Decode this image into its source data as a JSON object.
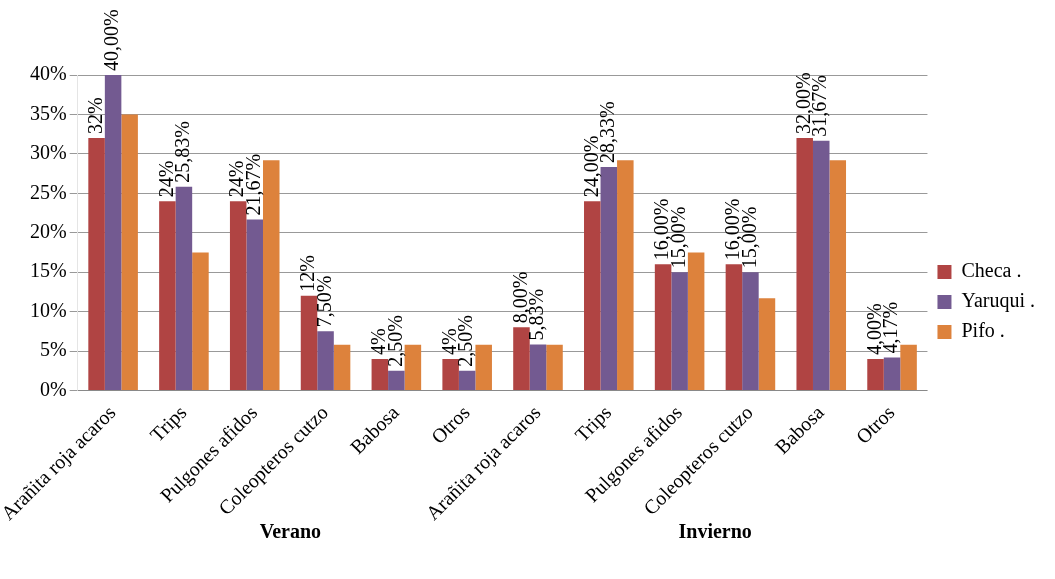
{
  "chart_data": {
    "type": "bar",
    "categories": [
      "Arañita roja acaros",
      "Trips",
      "Pulgones afidos",
      "Coleopteros cutzo",
      "Babosa",
      "Otros",
      "Arañita roja acaros",
      "Trips",
      "Pulgones afidos",
      "Coleopteros cutzo",
      "Babosa",
      "Otros"
    ],
    "series": [
      {
        "name": "Checa .",
        "color": "#b04443",
        "values": [
          32,
          24,
          24,
          12,
          4,
          4,
          8,
          24,
          16,
          16,
          32,
          4
        ],
        "value_labels": [
          "32%",
          "24%",
          "24%",
          "12%",
          "4%",
          "4%",
          "8,00%",
          "24,00%",
          "16,00%",
          "16,00%",
          "32,00%",
          "4,00%"
        ]
      },
      {
        "name": "Yaruqui .",
        "color": "#735a91",
        "values": [
          40,
          25.83,
          21.67,
          7.5,
          2.5,
          2.5,
          5.83,
          28.33,
          15,
          15,
          31.67,
          4.17
        ],
        "value_labels": [
          "40,00%",
          "25,83%",
          "21,67%",
          "7,50%",
          "2,50%",
          "2,50%",
          "5,83%",
          "28,33%",
          "15,00%",
          "15,00%",
          "31,67%",
          "4,17%"
        ]
      },
      {
        "name": "Pifo .",
        "color": "#dd823c",
        "values": [
          35,
          17.5,
          29.2,
          5.8,
          5.8,
          5.8,
          5.8,
          29.2,
          17.5,
          11.7,
          29.2,
          5.8
        ]
      }
    ],
    "ylim": [
      0,
      40
    ],
    "yticks": [
      {
        "value": 0,
        "label": "0%"
      },
      {
        "value": 5,
        "label": "5%"
      },
      {
        "value": 10,
        "label": "10%"
      },
      {
        "value": 15,
        "label": "15%"
      },
      {
        "value": 20,
        "label": "20%"
      },
      {
        "value": 25,
        "label": "25%"
      },
      {
        "value": 30,
        "label": "30%"
      },
      {
        "value": 35,
        "label": "35%"
      },
      {
        "value": 40,
        "label": "40%"
      }
    ],
    "grid": "y",
    "legend": "right",
    "annotations": [
      "Verano",
      "Invierno"
    ]
  }
}
